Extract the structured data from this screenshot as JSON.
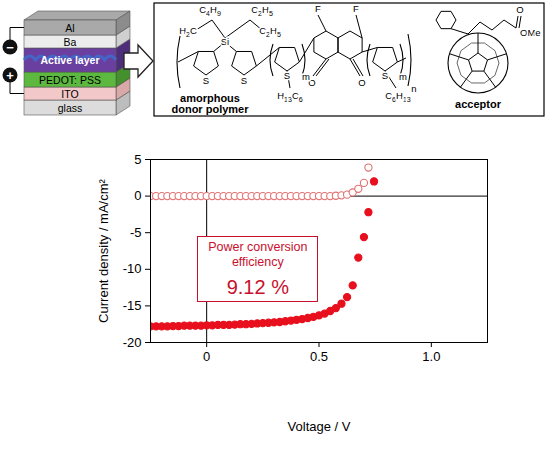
{
  "device": {
    "layers": [
      "Al",
      "Ba",
      "Active layer",
      "PEDOT: PSS",
      "ITO",
      "glass"
    ],
    "terminals": [
      "−",
      "+"
    ]
  },
  "structures": {
    "donor": {
      "label": [
        "amorphous",
        "donor polymer"
      ],
      "atoms": [
        "C4H9",
        "C2H5",
        "H2C",
        "Si",
        "C2H5",
        "S",
        "S",
        "S",
        "H13C6",
        "F",
        "F",
        "O",
        "O",
        "S",
        "C6H13",
        "m",
        "m",
        "n"
      ]
    },
    "acceptor": {
      "label": "acceptor",
      "atoms": [
        "O",
        "OMe"
      ]
    }
  },
  "chart_data": {
    "type": "scatter",
    "x_label": "Voltage / V",
    "y_label": "Current density / mA/cm²",
    "annotations": [
      "Power conversion efficiency",
      "9.12 %"
    ],
    "xlim": [
      -0.25,
      1.25
    ],
    "xticks": [
      0,
      0.5,
      {
        "value": 1,
        "label": "1.0"
      }
    ],
    "ylim": [
      -20,
      5
    ],
    "yticks": [
      -20,
      -15,
      -10,
      -5,
      0,
      5
    ],
    "x": [
      -0.25,
      -0.225,
      -0.2,
      -0.175,
      -0.15,
      -0.125,
      -0.1,
      -0.075,
      -0.05,
      -0.025,
      0,
      0.025,
      0.05,
      0.075,
      0.1,
      0.125,
      0.15,
      0.175,
      0.2,
      0.225,
      0.25,
      0.275,
      0.3,
      0.325,
      0.35,
      0.375,
      0.4,
      0.425,
      0.45,
      0.475,
      0.5,
      0.525,
      0.55,
      0.575,
      0.6,
      0.625,
      0.65,
      0.675,
      0.7,
      0.72,
      0.745
    ],
    "series": [
      {
        "color": "#e07070",
        "marker": "circle_open",
        "values": [
          0,
          0,
          0,
          0,
          0,
          0,
          0,
          0,
          0,
          0,
          0,
          0,
          0,
          0,
          0,
          0,
          0,
          0,
          0,
          0,
          0,
          0,
          0,
          0,
          0,
          0,
          0,
          0,
          0,
          0,
          0,
          0,
          0,
          0.05,
          0.1,
          0.2,
          0.5,
          1.0,
          1.8,
          3.9,
          null
        ]
      },
      {
        "color": "#e8101e",
        "marker": "circle",
        "values": [
          -17.8,
          -17.8,
          -17.8,
          -17.8,
          -17.75,
          -17.75,
          -17.7,
          -17.7,
          -17.7,
          -17.7,
          -17.65,
          -17.65,
          -17.6,
          -17.6,
          -17.6,
          -17.55,
          -17.5,
          -17.5,
          -17.45,
          -17.4,
          -17.35,
          -17.3,
          -17.25,
          -17.2,
          -17.1,
          -17.0,
          -16.9,
          -16.8,
          -16.65,
          -16.5,
          -16.3,
          -16.05,
          -15.7,
          -15.3,
          -14.7,
          -13.8,
          -12.2,
          -8.4,
          -5.6,
          -2.2,
          2.0
        ]
      }
    ]
  }
}
